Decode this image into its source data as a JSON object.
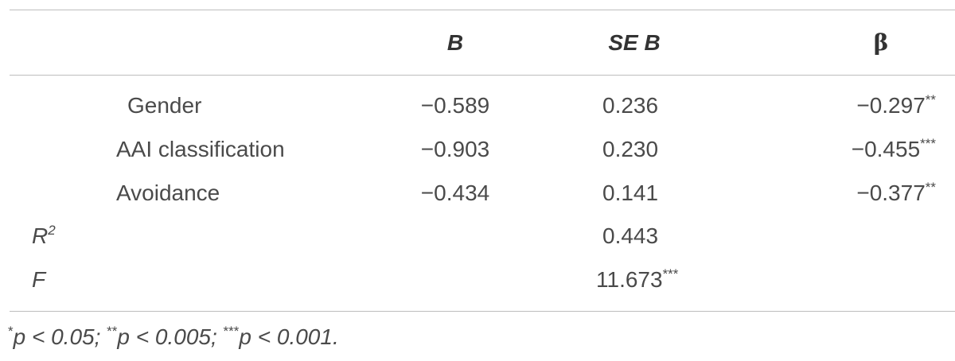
{
  "table": {
    "header": {
      "B": "B",
      "SE_B": "SE B",
      "beta": "β"
    },
    "rows": [
      {
        "label": {
          "text": "Gender"
        },
        "cells": {
          "B": {
            "text": "−0.589"
          },
          "SE_B": {
            "text": "0.236"
          },
          "beta": {
            "text": "−0.297",
            "sup": "**"
          }
        }
      },
      {
        "label": {
          "text": "AAI classification"
        },
        "cells": {
          "B": {
            "text": "−0.903"
          },
          "SE_B": {
            "text": "0.230"
          },
          "beta": {
            "text": "−0.455",
            "sup": "***"
          }
        }
      },
      {
        "label": {
          "text": "Avoidance"
        },
        "cells": {
          "B": {
            "text": "−0.434"
          },
          "SE_B": {
            "text": "0.141"
          },
          "beta": {
            "text": "−0.377",
            "sup": "**"
          }
        }
      },
      {
        "label": {
          "text": "R",
          "sup": "2"
        },
        "cells": {
          "SE_B": {
            "text": "0.443"
          }
        }
      },
      {
        "label": {
          "text": "F"
        },
        "cells": {
          "SE_B": {
            "text": "11.673",
            "sup": "***"
          }
        }
      }
    ],
    "footnote": [
      {
        "sup": "*",
        "text": "p < 0.05;"
      },
      {
        "sup": "**",
        "text": "p < 0.005;"
      },
      {
        "sup": "***",
        "text": "p < 0.001."
      }
    ]
  }
}
